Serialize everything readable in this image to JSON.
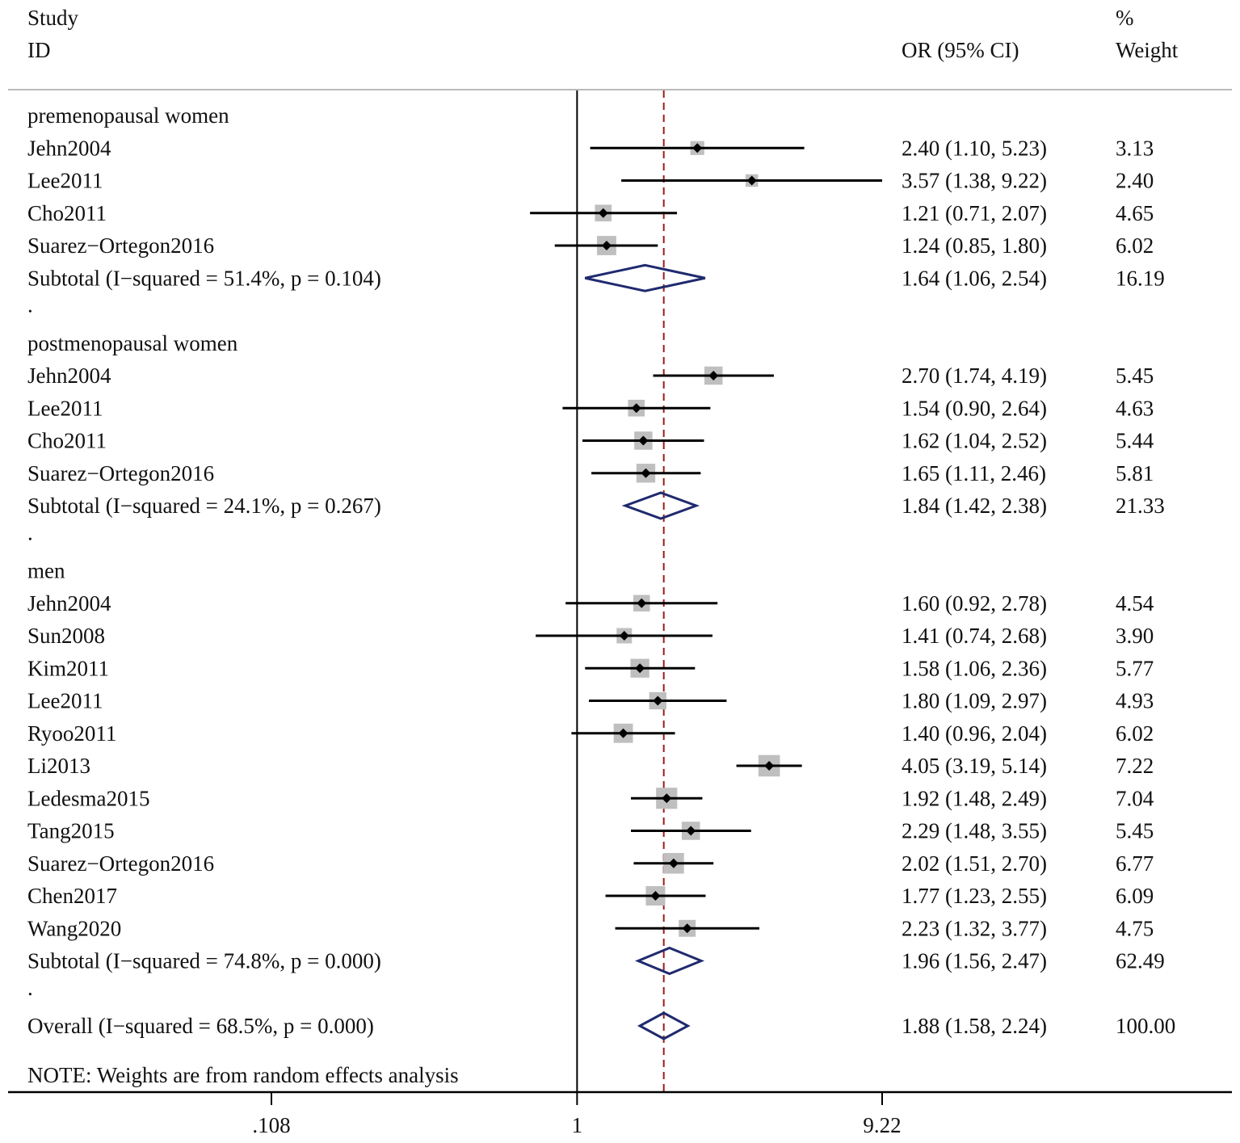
{
  "colors": {
    "text": "#111111",
    "line": "#000000",
    "box": "#bfbfbf",
    "diamond": "#1f2a6e",
    "ref_line": "#9b1c1c",
    "separator": "#bbbbbb"
  },
  "chart_data": {
    "type": "forest",
    "headers": {
      "study_line1": "Study",
      "study_line2": "ID",
      "or": "OR (95% CI)",
      "weight_line1": "%",
      "weight_line2": "Weight"
    },
    "x_axis": {
      "scale": "log",
      "range": [
        0.108,
        9.22
      ],
      "ticks": [
        {
          "value": 0.108,
          "label": ".108"
        },
        {
          "value": 1,
          "label": "1"
        },
        {
          "value": 9.22,
          "label": "9.22"
        }
      ],
      "null_line": 1,
      "overall_line": 1.88
    },
    "groups": [
      {
        "label": "premenopausal women",
        "studies": [
          {
            "id": "Jehn2004",
            "or": 2.4,
            "lo": 1.1,
            "hi": 5.23,
            "or_text": "2.40 (1.10, 5.23)",
            "weight": "3.13",
            "w": 3.13
          },
          {
            "id": "Lee2011",
            "or": 3.57,
            "lo": 1.38,
            "hi": 9.22,
            "or_text": "3.57 (1.38, 9.22)",
            "weight": "2.40",
            "w": 2.4
          },
          {
            "id": "Cho2011",
            "or": 1.21,
            "lo": 0.71,
            "hi": 2.07,
            "or_text": "1.21 (0.71, 2.07)",
            "weight": "4.65",
            "w": 4.65
          },
          {
            "id": "Suarez−Ortegon2016",
            "or": 1.24,
            "lo": 0.85,
            "hi": 1.8,
            "or_text": "1.24 (0.85, 1.80)",
            "weight": "6.02",
            "w": 6.02
          }
        ],
        "subtotal": {
          "label": "Subtotal  (I−squared = 51.4%, p = 0.104)",
          "or": 1.64,
          "lo": 1.06,
          "hi": 2.54,
          "or_text": "1.64 (1.06, 2.54)",
          "weight": "16.19"
        },
        "spacer": "."
      },
      {
        "label": "postmenopausal women",
        "studies": [
          {
            "id": "Jehn2004",
            "or": 2.7,
            "lo": 1.74,
            "hi": 4.19,
            "or_text": "2.70 (1.74, 4.19)",
            "weight": "5.45",
            "w": 5.45
          },
          {
            "id": "Lee2011",
            "or": 1.54,
            "lo": 0.9,
            "hi": 2.64,
            "or_text": "1.54 (0.90, 2.64)",
            "weight": "4.63",
            "w": 4.63
          },
          {
            "id": "Cho2011",
            "or": 1.62,
            "lo": 1.04,
            "hi": 2.52,
            "or_text": "1.62 (1.04, 2.52)",
            "weight": "5.44",
            "w": 5.44
          },
          {
            "id": "Suarez−Ortegon2016",
            "or": 1.65,
            "lo": 1.11,
            "hi": 2.46,
            "or_text": "1.65 (1.11, 2.46)",
            "weight": "5.81",
            "w": 5.81
          }
        ],
        "subtotal": {
          "label": "Subtotal  (I−squared = 24.1%, p = 0.267)",
          "or": 1.84,
          "lo": 1.42,
          "hi": 2.38,
          "or_text": "1.84 (1.42, 2.38)",
          "weight": "21.33"
        },
        "spacer": "."
      },
      {
        "label": "men",
        "studies": [
          {
            "id": "Jehn2004",
            "or": 1.6,
            "lo": 0.92,
            "hi": 2.78,
            "or_text": "1.60 (0.92, 2.78)",
            "weight": "4.54",
            "w": 4.54
          },
          {
            "id": "Sun2008",
            "or": 1.41,
            "lo": 0.74,
            "hi": 2.68,
            "or_text": "1.41 (0.74, 2.68)",
            "weight": "3.90",
            "w": 3.9
          },
          {
            "id": "Kim2011",
            "or": 1.58,
            "lo": 1.06,
            "hi": 2.36,
            "or_text": "1.58 (1.06, 2.36)",
            "weight": "5.77",
            "w": 5.77
          },
          {
            "id": "Lee2011",
            "or": 1.8,
            "lo": 1.09,
            "hi": 2.97,
            "or_text": "1.80 (1.09, 2.97)",
            "weight": "4.93",
            "w": 4.93
          },
          {
            "id": "Ryoo2011",
            "or": 1.4,
            "lo": 0.96,
            "hi": 2.04,
            "or_text": "1.40 (0.96, 2.04)",
            "weight": "6.02",
            "w": 6.02
          },
          {
            "id": "Li2013",
            "or": 4.05,
            "lo": 3.19,
            "hi": 5.14,
            "or_text": "4.05 (3.19, 5.14)",
            "weight": "7.22",
            "w": 7.22
          },
          {
            "id": "Ledesma2015",
            "or": 1.92,
            "lo": 1.48,
            "hi": 2.49,
            "or_text": "1.92 (1.48, 2.49)",
            "weight": "7.04",
            "w": 7.04
          },
          {
            "id": "Tang2015",
            "or": 2.29,
            "lo": 1.48,
            "hi": 3.55,
            "or_text": "2.29 (1.48, 3.55)",
            "weight": "5.45",
            "w": 5.45
          },
          {
            "id": "Suarez−Ortegon2016",
            "or": 2.02,
            "lo": 1.51,
            "hi": 2.7,
            "or_text": "2.02 (1.51, 2.70)",
            "weight": "6.77",
            "w": 6.77
          },
          {
            "id": "Chen2017",
            "or": 1.77,
            "lo": 1.23,
            "hi": 2.55,
            "or_text": "1.77 (1.23, 2.55)",
            "weight": "6.09",
            "w": 6.09
          },
          {
            "id": "Wang2020",
            "or": 2.23,
            "lo": 1.32,
            "hi": 3.77,
            "or_text": "2.23 (1.32, 3.77)",
            "weight": "4.75",
            "w": 4.75
          }
        ],
        "subtotal": {
          "label": "Subtotal  (I−squared = 74.8%, p = 0.000)",
          "or": 1.96,
          "lo": 1.56,
          "hi": 2.47,
          "or_text": "1.96 (1.56, 2.47)",
          "weight": "62.49"
        },
        "spacer": "."
      }
    ],
    "overall": {
      "label": "Overall  (I−squared = 68.5%, p = 0.000)",
      "or": 1.88,
      "lo": 1.58,
      "hi": 2.24,
      "or_text": "1.88 (1.58, 2.24)",
      "weight": "100.00"
    },
    "note": "NOTE: Weights are from random effects analysis"
  }
}
